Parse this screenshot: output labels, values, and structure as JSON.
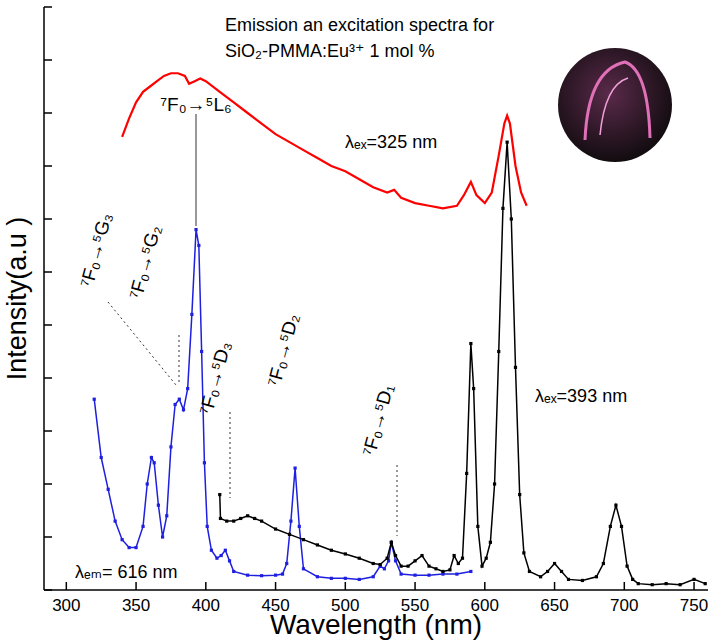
{
  "chart_data": {
    "type": "line",
    "title": "Emission an excitation spectra for",
    "subtitle": "SiO₂-PMMA:Eu³⁺  1 mol %",
    "x_label": "Wavelength (nm)",
    "y_label": "Intensity(a.u )",
    "xlim": [
      284,
      760
    ],
    "ylim": [
      0,
      11
    ],
    "xticks": [
      300,
      350,
      400,
      450,
      500,
      550,
      600,
      650,
      700,
      750
    ],
    "yticks": [
      0,
      1,
      2,
      3,
      4,
      5,
      6,
      7,
      8,
      9,
      10,
      11
    ],
    "tick_labels": "x",
    "grid": false,
    "series": [
      {
        "name": "λₑₓ=325 nm",
        "color": "#ff0000",
        "marker": "none",
        "line_style": "solid",
        "x": [
          340,
          345,
          350,
          355,
          360,
          365,
          370,
          375,
          380,
          385,
          388,
          392,
          396,
          400,
          410,
          420,
          430,
          440,
          450,
          460,
          470,
          480,
          490,
          500,
          510,
          520,
          530,
          535,
          540,
          550,
          560,
          570,
          580,
          585,
          590,
          594,
          600,
          605,
          610,
          614,
          616,
          618,
          622,
          626,
          630
        ],
        "values": [
          8.55,
          8.9,
          9.2,
          9.4,
          9.5,
          9.6,
          9.7,
          9.75,
          9.75,
          9.7,
          9.55,
          9.6,
          9.65,
          9.6,
          9.4,
          9.2,
          9.0,
          8.8,
          8.6,
          8.45,
          8.3,
          8.15,
          8.0,
          7.9,
          7.75,
          7.6,
          7.5,
          7.55,
          7.4,
          7.3,
          7.25,
          7.2,
          7.25,
          7.45,
          7.7,
          7.45,
          7.3,
          7.5,
          8.2,
          8.8,
          8.95,
          8.8,
          8.0,
          7.5,
          7.25
        ]
      },
      {
        "name": "λₑₘ= 616 nm",
        "color": "#1f1fe0",
        "marker": "square",
        "line_style": "solid",
        "x": [
          320,
          325,
          330,
          335,
          340,
          345,
          350,
          355,
          358,
          361,
          363,
          366,
          369,
          372,
          375,
          378,
          381,
          384,
          387,
          390,
          393,
          395,
          397,
          399,
          401,
          404,
          408,
          411,
          414,
          417,
          420,
          430,
          440,
          450,
          455,
          458,
          461,
          464,
          467,
          470,
          480,
          490,
          500,
          510,
          520,
          525,
          528,
          531,
          533,
          536,
          540,
          550,
          560,
          570,
          580,
          590
        ],
        "values": [
          3.6,
          2.5,
          1.9,
          1.3,
          0.95,
          0.8,
          0.8,
          1.2,
          2.0,
          2.5,
          2.4,
          1.6,
          1.0,
          1.4,
          2.7,
          3.5,
          3.6,
          3.4,
          3.8,
          5.2,
          6.8,
          6.5,
          4.5,
          2.4,
          1.2,
          0.75,
          0.6,
          0.65,
          0.75,
          0.55,
          0.35,
          0.28,
          0.27,
          0.28,
          0.3,
          0.5,
          1.3,
          2.3,
          1.2,
          0.4,
          0.25,
          0.22,
          0.22,
          0.2,
          0.25,
          0.45,
          0.4,
          0.55,
          0.9,
          0.55,
          0.3,
          0.28,
          0.28,
          0.3,
          0.3,
          0.35
        ]
      },
      {
        "name": "λₑₓ=393 nm",
        "color": "#000000",
        "marker": "square",
        "line_style": "solid",
        "x": [
          410,
          410.5,
          415,
          420,
          425,
          430,
          435,
          440,
          450,
          460,
          470,
          480,
          490,
          500,
          510,
          520,
          525,
          530,
          533,
          536,
          540,
          545,
          550,
          555,
          560,
          565,
          570,
          575,
          578,
          581,
          584,
          587,
          590,
          592,
          595,
          598,
          601,
          604,
          607,
          610,
          613,
          616,
          619,
          622,
          625,
          628,
          632,
          640,
          645,
          650,
          655,
          660,
          670,
          680,
          685,
          690,
          694,
          698,
          702,
          706,
          710,
          720,
          730,
          740,
          750,
          758
        ],
        "values": [
          1.8,
          1.35,
          1.3,
          1.3,
          1.35,
          1.4,
          1.35,
          1.3,
          1.15,
          1.05,
          0.95,
          0.85,
          0.75,
          0.68,
          0.6,
          0.5,
          0.48,
          0.6,
          0.9,
          0.65,
          0.45,
          0.45,
          0.55,
          0.65,
          0.45,
          0.4,
          0.35,
          0.38,
          0.65,
          0.5,
          0.6,
          2.2,
          4.65,
          3.8,
          1.2,
          0.45,
          0.6,
          0.9,
          2.0,
          4.5,
          7.2,
          8.45,
          7.0,
          4.2,
          1.8,
          0.7,
          0.35,
          0.25,
          0.35,
          0.5,
          0.35,
          0.2,
          0.18,
          0.25,
          0.5,
          1.2,
          1.6,
          1.2,
          0.45,
          0.2,
          0.12,
          0.1,
          0.12,
          0.1,
          0.2,
          0.12
        ]
      }
    ],
    "annotations": [
      {
        "text": "⁷F₀→⁵G₃"
      },
      {
        "text": "⁷F₀→⁵G₂"
      },
      {
        "text": "⁷F₀→⁵L₆"
      },
      {
        "text": "⁷F₀→⁵D₃"
      },
      {
        "text": "⁷F₀→⁵D₂"
      },
      {
        "text": "⁷F₀→⁵D₁"
      }
    ]
  }
}
